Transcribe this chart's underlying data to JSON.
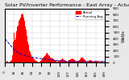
{
  "title": "Solar PV/Inverter Performance - East Array - Actual & Running Average Power Output",
  "ylabel": "Watts",
  "background_color": "#e8e8e8",
  "plot_bg_color": "#ffffff",
  "grid_color": "#cccccc",
  "bar_color": "#ff0000",
  "avg_line_color": "#0000cc",
  "avg_line_style": "--",
  "ylim": [
    0,
    900
  ],
  "bar_heights": [
    20,
    15,
    10,
    25,
    30,
    20,
    15,
    10,
    5,
    10,
    15,
    20,
    30,
    50,
    80,
    120,
    200,
    350,
    500,
    450,
    380,
    420,
    480,
    520,
    580,
    600,
    620,
    650,
    700,
    680,
    720,
    750,
    780,
    800,
    820,
    850,
    800,
    780,
    750,
    700,
    650,
    600,
    550,
    500,
    450,
    400,
    350,
    300,
    250,
    200,
    180,
    160,
    140,
    120,
    100,
    90,
    80,
    70,
    60,
    50,
    45,
    40,
    35,
    30,
    25,
    20,
    15,
    10,
    5,
    10,
    20,
    30,
    40,
    50,
    60,
    70,
    80,
    90,
    100,
    110,
    120,
    130,
    140,
    150,
    160,
    150,
    140,
    130,
    120,
    110,
    100,
    90,
    80,
    75,
    70,
    65,
    60,
    55,
    50,
    45,
    40,
    35,
    30,
    25,
    20,
    15,
    20,
    25,
    30,
    35,
    40,
    45,
    50,
    55,
    60,
    65,
    60,
    55,
    50,
    45,
    40,
    35,
    30,
    25,
    20,
    25,
    30,
    35,
    40,
    45,
    50,
    55,
    60,
    65,
    70,
    65,
    60,
    55,
    50,
    45,
    40,
    35,
    30,
    25,
    20,
    25,
    30,
    35,
    40,
    50,
    60,
    70,
    80,
    90,
    100,
    90,
    80,
    70,
    60,
    50,
    40,
    30,
    20,
    10,
    15,
    20,
    25,
    30,
    35,
    40,
    45,
    40,
    35,
    30,
    25,
    20,
    15,
    10,
    15,
    20,
    25,
    30,
    35,
    30,
    25,
    20,
    15,
    10,
    5,
    10,
    15,
    20,
    25,
    20,
    15,
    10,
    5,
    10,
    15,
    20,
    15,
    10,
    5,
    5
  ],
  "avg_values": [
    400,
    390,
    380,
    370,
    360,
    350,
    340,
    330,
    320,
    310,
    300,
    290,
    280,
    270,
    260,
    250,
    240,
    230,
    220,
    210,
    200,
    195,
    190,
    185,
    180,
    175,
    170,
    165,
    160,
    155,
    150,
    147,
    144,
    141,
    138,
    135,
    132,
    129,
    126,
    123,
    120,
    118,
    116,
    114,
    112,
    110,
    108,
    106,
    104,
    102,
    100,
    98,
    96,
    94,
    92,
    90,
    88,
    86,
    84,
    82,
    80,
    79,
    78,
    77,
    76,
    75,
    74,
    73,
    72,
    71,
    70,
    69,
    68,
    67,
    66,
    65,
    64,
    63,
    62,
    61,
    60,
    59,
    58,
    57,
    56,
    55,
    54,
    53,
    52,
    51,
    50,
    49,
    48,
    47,
    46,
    45,
    44,
    43,
    42,
    41,
    40,
    39,
    38,
    37,
    36,
    35,
    34,
    33,
    32,
    31,
    30,
    29,
    28,
    27,
    26,
    25,
    24,
    23,
    22,
    21,
    20,
    20,
    20,
    20,
    20,
    20,
    20,
    20,
    20,
    20,
    20,
    20,
    20,
    20,
    20,
    20,
    20,
    20,
    20,
    20,
    20,
    20,
    20,
    20,
    20,
    20,
    20,
    20,
    20,
    20,
    20,
    20,
    20,
    20,
    20,
    20,
    20,
    20,
    20,
    20,
    20,
    20,
    20,
    20,
    20,
    20,
    20,
    20,
    20,
    20,
    20,
    20,
    20,
    20,
    20,
    20,
    20,
    20,
    20,
    20,
    20,
    20,
    20,
    20,
    20,
    20,
    20,
    20,
    20,
    20,
    20,
    20,
    20,
    20,
    20,
    20,
    20,
    20,
    20,
    20
  ],
  "title_fontsize": 4.5,
  "tick_fontsize": 3.0,
  "ylabel_fontsize": 4,
  "yticks": [
    0,
    100,
    200,
    300,
    400,
    500,
    600,
    700,
    800,
    900
  ]
}
